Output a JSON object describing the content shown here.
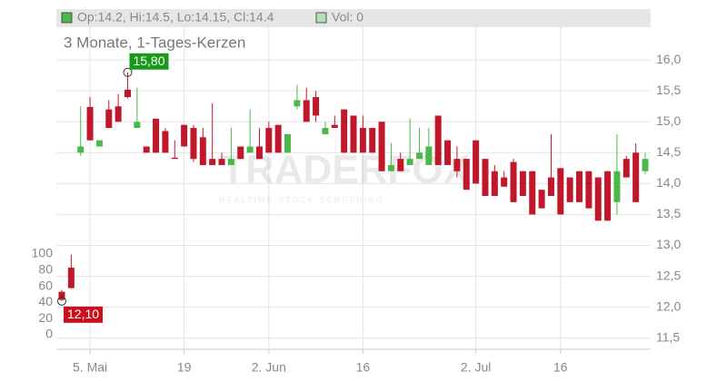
{
  "chart_data": {
    "type": "candlestick",
    "title": "3 Monate, 1-Tages-Kerzen",
    "legend": {
      "ohlc": "Op:14.2, Hi:14.5, Lo:14.15, Cl:14.4",
      "volume": "Vol: 0"
    },
    "watermark": {
      "brand": "TRADERFOX",
      "tagline": "REALTIME STOCK SCREENING"
    },
    "up_color": "#4cb84c",
    "down_color": "#c0182a",
    "grid": true,
    "categories": [
      null,
      null,
      null,
      "5. Mai",
      null,
      null,
      null,
      null,
      null,
      null,
      null,
      null,
      null,
      "19",
      null,
      null,
      null,
      null,
      null,
      null,
      null,
      null,
      "2. Jun",
      null,
      null,
      null,
      null,
      null,
      null,
      null,
      null,
      null,
      "16",
      null,
      null,
      null,
      null,
      null,
      null,
      null,
      null,
      null,
      null,
      null,
      "2. Jul",
      null,
      null,
      null,
      null,
      null,
      null,
      null,
      null,
      "16",
      null,
      null,
      null,
      null,
      null,
      null,
      null,
      null,
      null
    ],
    "open": [
      12.25,
      12.64,
      14.5,
      15.24,
      14.6,
      15.2,
      15.25,
      15.52,
      14.9,
      14.6,
      15.05,
      14.85,
      14.42,
      14.95,
      14.9,
      14.75,
      14.4,
      14.4,
      14.3,
      14.6,
      14.5,
      14.6,
      14.9,
      14.95,
      14.5,
      15.25,
      15.35,
      15.4,
      14.8,
      14.95,
      15.2,
      15.1,
      14.9,
      14.9,
      15.0,
      14.2,
      14.4,
      14.3,
      14.4,
      14.3,
      15.1,
      14.7,
      14.4,
      14.4,
      14.7,
      14.4,
      14.2,
      14.1,
      14.35,
      14.2,
      14.2,
      13.9,
      14.1,
      14.25,
      14.1,
      14.2,
      14.2,
      14.1,
      14.2,
      13.7,
      14.4,
      14.5,
      14.2
    ],
    "high": [
      12.28,
      12.85,
      15.25,
      15.4,
      14.7,
      15.35,
      15.45,
      15.8,
      15.55,
      14.6,
      15.05,
      14.9,
      14.7,
      14.95,
      14.95,
      14.9,
      15.3,
      14.5,
      14.9,
      14.6,
      15.2,
      14.9,
      15.0,
      14.95,
      14.8,
      15.6,
      15.55,
      15.5,
      15.0,
      15.1,
      15.2,
      15.1,
      15.1,
      14.9,
      15.0,
      14.65,
      14.5,
      15.05,
      14.9,
      14.9,
      15.1,
      14.7,
      14.6,
      14.4,
      14.7,
      14.4,
      14.3,
      14.2,
      14.4,
      14.2,
      14.2,
      13.9,
      14.8,
      14.25,
      14.1,
      14.2,
      14.2,
      14.1,
      14.2,
      14.8,
      14.45,
      14.65,
      14.5
    ],
    "low": [
      12.1,
      12.3,
      14.45,
      14.7,
      14.6,
      14.9,
      15.0,
      15.38,
      14.9,
      14.5,
      14.5,
      14.5,
      14.4,
      14.6,
      14.35,
      14.3,
      14.3,
      14.3,
      14.3,
      14.4,
      14.5,
      14.4,
      14.5,
      14.5,
      14.5,
      15.2,
      15.0,
      15.0,
      14.8,
      14.9,
      14.5,
      14.5,
      14.5,
      14.5,
      14.2,
      14.2,
      14.2,
      14.3,
      14.4,
      14.3,
      14.3,
      14.3,
      14.1,
      13.9,
      14.0,
      13.8,
      13.8,
      13.95,
      13.7,
      13.8,
      13.5,
      13.6,
      13.8,
      13.5,
      13.7,
      13.7,
      13.6,
      13.4,
      13.4,
      13.5,
      14.1,
      13.7,
      14.15
    ],
    "close": [
      12.12,
      12.31,
      14.6,
      14.7,
      14.7,
      14.9,
      15.0,
      15.4,
      15.0,
      14.5,
      14.5,
      14.5,
      14.4,
      14.6,
      14.4,
      14.3,
      14.3,
      14.3,
      14.4,
      14.4,
      14.6,
      14.4,
      14.5,
      14.5,
      14.8,
      15.35,
      15.0,
      15.1,
      14.9,
      14.9,
      14.5,
      14.5,
      14.5,
      14.5,
      14.2,
      14.3,
      14.2,
      14.4,
      14.5,
      14.6,
      14.3,
      14.3,
      14.2,
      13.9,
      14.0,
      13.8,
      13.8,
      13.95,
      13.7,
      13.8,
      13.5,
      13.6,
      13.8,
      13.5,
      13.7,
      13.7,
      13.6,
      13.4,
      13.4,
      14.2,
      14.1,
      13.7,
      14.4
    ],
    "annotations": [
      {
        "label": "15,80",
        "value": 15.8
      },
      {
        "label": "12,10",
        "value": 12.1
      }
    ],
    "ylim": [
      11.32,
      16.53
    ],
    "yticks": [
      {
        "value": 11.5,
        "label": "11,5"
      },
      {
        "value": 12,
        "label": "12,0"
      },
      {
        "value": 12.5,
        "label": "12,5"
      },
      {
        "value": 13,
        "label": "13,0"
      },
      {
        "value": 13.5,
        "label": "13,5"
      },
      {
        "value": 14,
        "label": "14,0"
      },
      {
        "value": 14.5,
        "label": "14,5"
      },
      {
        "value": 15,
        "label": "15,0"
      },
      {
        "value": 15.5,
        "label": "15,5"
      },
      {
        "value": 16,
        "label": "16,0"
      }
    ],
    "y2lim": [
      0,
      100
    ],
    "y2ticks": [
      0,
      20,
      40,
      60,
      80,
      100
    ]
  }
}
